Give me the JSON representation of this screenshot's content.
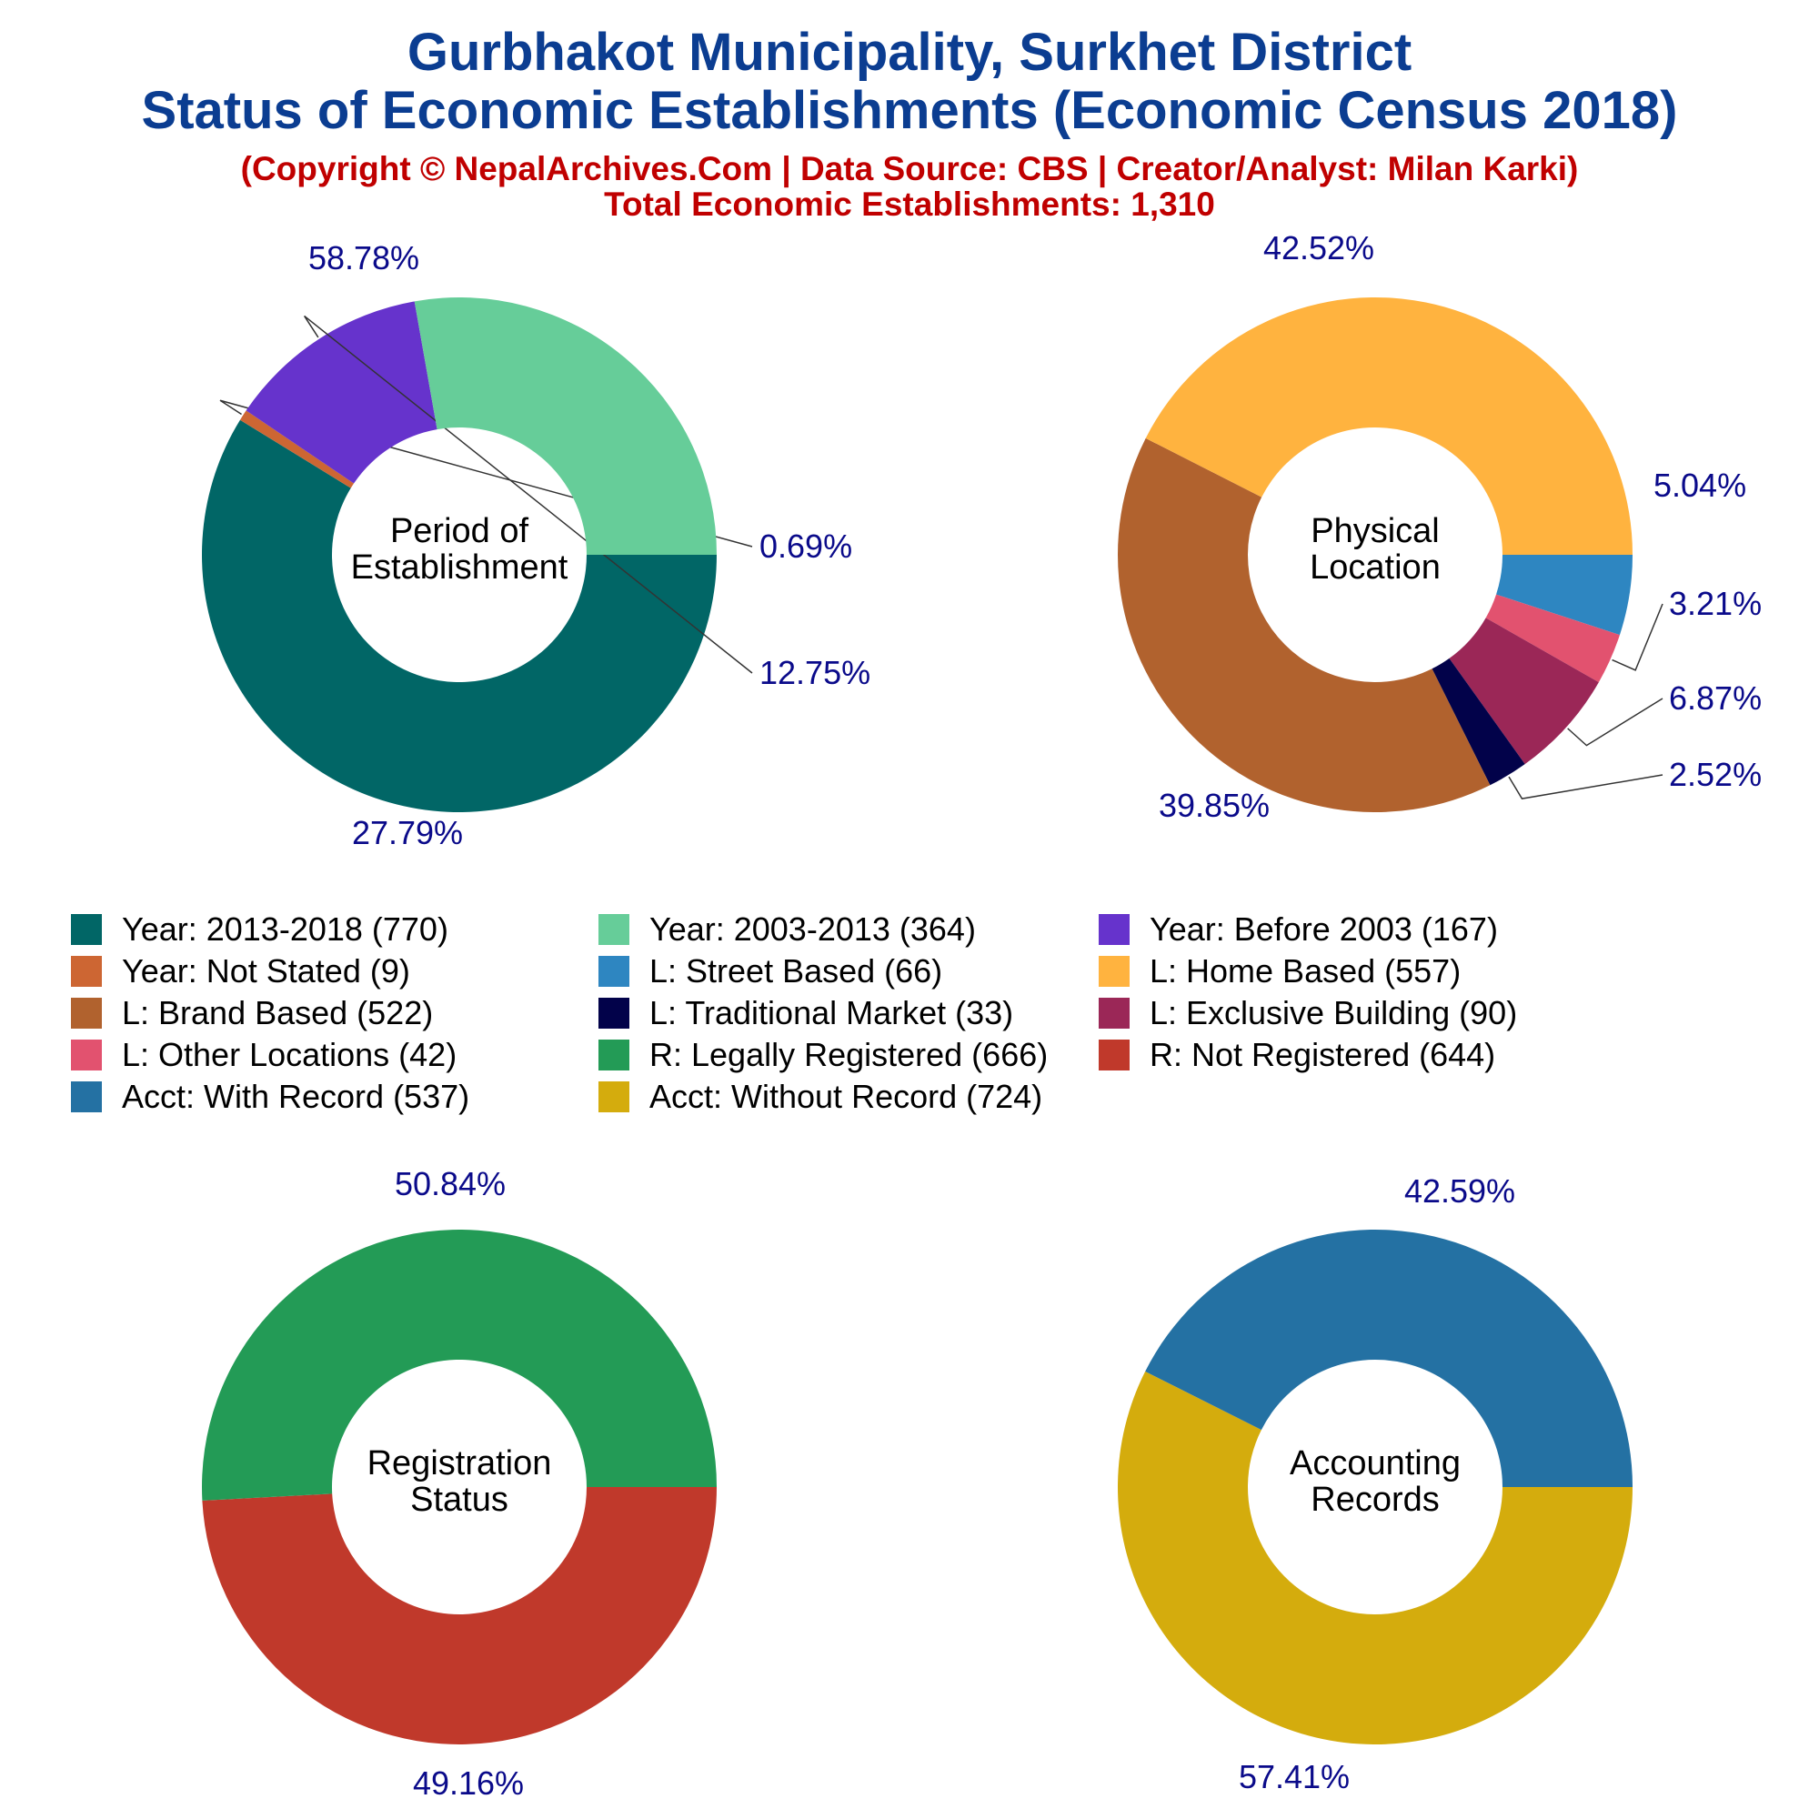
{
  "title_line1": "Gurbhakot Municipality, Surkhet District",
  "title_line2": "Status of Economic Establishments (Economic Census 2018)",
  "subtitle_line1": "(Copyright © NepalArchives.Com | Data Source: CBS | Creator/Analyst: Milan Karki)",
  "subtitle_line2": "Total Economic Establishments: 1,310",
  "legend": [
    {
      "label": "Year: 2013-2018 (770)",
      "color": "#016666"
    },
    {
      "label": "Year: 2003-2013 (364)",
      "color": "#66cd99"
    },
    {
      "label": "Year: Before 2003 (167)",
      "color": "#6633cc"
    },
    {
      "label": "Year: Not Stated (9)",
      "color": "#cd6633"
    },
    {
      "label": "L: Street Based (66)",
      "color": "#2e86c1"
    },
    {
      "label": "L: Home Based (557)",
      "color": "#ffb33f"
    },
    {
      "label": "L: Brand Based (522)",
      "color": "#b1622e"
    },
    {
      "label": "L: Traditional Market (33)",
      "color": "#02024a"
    },
    {
      "label": "L: Exclusive Building (90)",
      "color": "#9b2757"
    },
    {
      "label": "L: Other Locations (42)",
      "color": "#e2526f"
    },
    {
      "label": "R: Legally Registered (666)",
      "color": "#239b56"
    },
    {
      "label": "R: Not Registered (644)",
      "color": "#c0392b"
    },
    {
      "label": "Acct: With Record (537)",
      "color": "#2471a3"
    },
    {
      "label": "Acct: Without Record (724)",
      "color": "#d4ac0d"
    }
  ],
  "chart_data": [
    {
      "type": "pie",
      "donut": true,
      "center_label": [
        "Period of",
        "Establishment"
      ],
      "slices": [
        {
          "label": "Year: 2013-2018",
          "value": 770,
          "percent": "58.78%",
          "color": "#016666"
        },
        {
          "label": "Year: Not Stated",
          "value": 9,
          "percent": "0.69%",
          "color": "#cd6633"
        },
        {
          "label": "Year: Before 2003",
          "value": 167,
          "percent": "12.75%",
          "color": "#6633cc"
        },
        {
          "label": "Year: 2003-2013",
          "value": 364,
          "percent": "27.79%",
          "color": "#66cd99"
        }
      ]
    },
    {
      "type": "pie",
      "donut": true,
      "center_label": [
        "Physical",
        "Location"
      ],
      "slices": [
        {
          "label": "L: Street Based",
          "value": 66,
          "percent": "5.04%",
          "color": "#2e86c1"
        },
        {
          "label": "L: Other Locations",
          "value": 42,
          "percent": "3.21%",
          "color": "#e2526f"
        },
        {
          "label": "L: Exclusive Building",
          "value": 90,
          "percent": "6.87%",
          "color": "#9b2757"
        },
        {
          "label": "L: Traditional Market",
          "value": 33,
          "percent": "2.52%",
          "color": "#02024a"
        },
        {
          "label": "L: Brand Based",
          "value": 522,
          "percent": "39.85%",
          "color": "#b1622e"
        },
        {
          "label": "L: Home Based",
          "value": 557,
          "percent": "42.52%",
          "color": "#ffb33f"
        }
      ]
    },
    {
      "type": "pie",
      "donut": true,
      "center_label": [
        "Registration",
        "Status"
      ],
      "slices": [
        {
          "label": "R: Not Registered",
          "value": 644,
          "percent": "49.16%",
          "color": "#c0392b"
        },
        {
          "label": "R: Legally Registered",
          "value": 666,
          "percent": "50.84%",
          "color": "#239b56"
        }
      ]
    },
    {
      "type": "pie",
      "donut": true,
      "center_label": [
        "Accounting",
        "Records"
      ],
      "slices": [
        {
          "label": "Acct: Without Record",
          "value": 724,
          "percent": "57.41%",
          "color": "#d4ac0d"
        },
        {
          "label": "Acct: With Record",
          "value": 537,
          "percent": "42.59%",
          "color": "#2471a3"
        }
      ]
    }
  ]
}
